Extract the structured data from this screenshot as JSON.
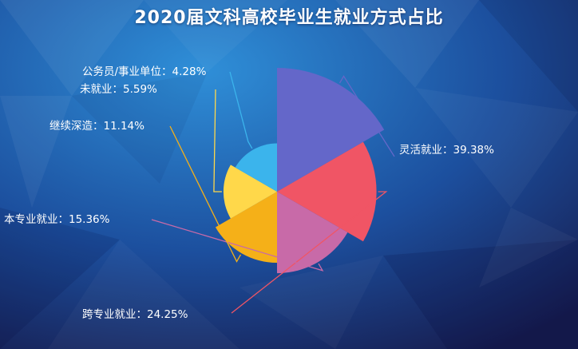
{
  "chart_data": {
    "type": "pie",
    "variant": "rose",
    "title": "2020届文科高校毕业生就业方式占比",
    "slices": [
      {
        "name": "灵活就业",
        "value": 39.38,
        "label": "灵活就业：39.38%",
        "color": "#6467c9"
      },
      {
        "name": "跨专业就业",
        "value": 24.25,
        "label": "跨专业就业：24.25%",
        "color": "#f05565"
      },
      {
        "name": "本专业就业",
        "value": 15.36,
        "label": "本专业就业：15.36%",
        "color": "#c86aa8"
      },
      {
        "name": "继续深造",
        "value": 11.14,
        "label": "继续深造：11.14%",
        "color": "#f5b018"
      },
      {
        "name": "未就业",
        "value": 5.59,
        "label": "未就业：5.59%",
        "color": "#ffd84a"
      },
      {
        "name": "公务员/事业单位",
        "value": 4.28,
        "label": "公务员/事业单位：4.28%",
        "color": "#3bb4ec"
      }
    ]
  }
}
